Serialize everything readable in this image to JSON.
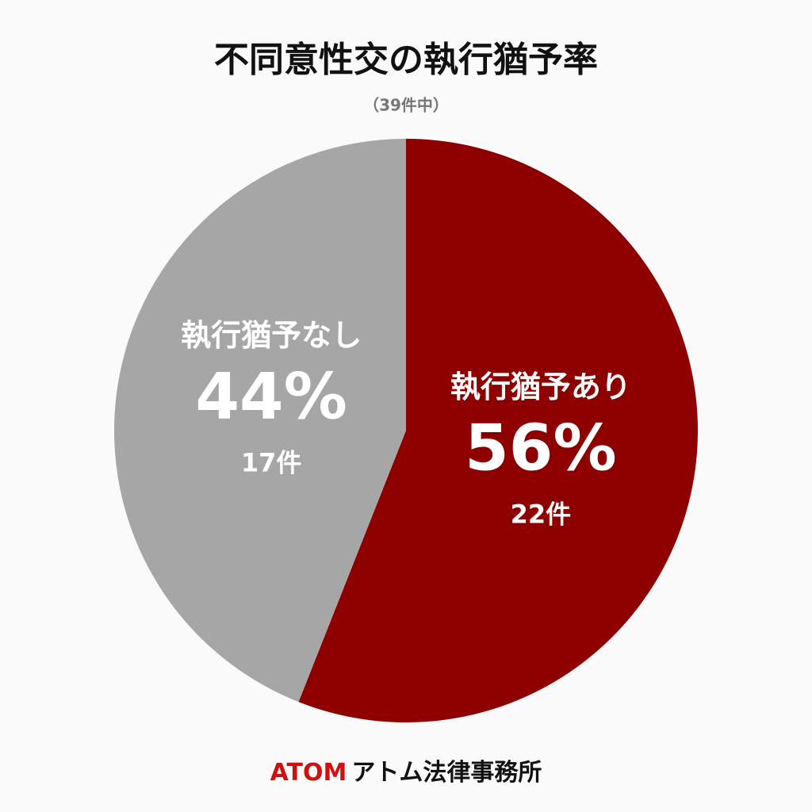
{
  "chart_data": {
    "type": "pie",
    "title": "不同意性交の執行猶予率",
    "subtitle": "（39件中）",
    "categories": [
      "執行猶予あり",
      "執行猶予なし"
    ],
    "values": [
      56,
      44
    ],
    "value_labels": [
      "56%",
      "44%"
    ],
    "count_labels": [
      "22件",
      "17件"
    ],
    "colors": [
      "#8e0000",
      "#a6a6a6"
    ]
  },
  "footer": {
    "brand": "ATOM",
    "name": "アトム法律事務所"
  }
}
